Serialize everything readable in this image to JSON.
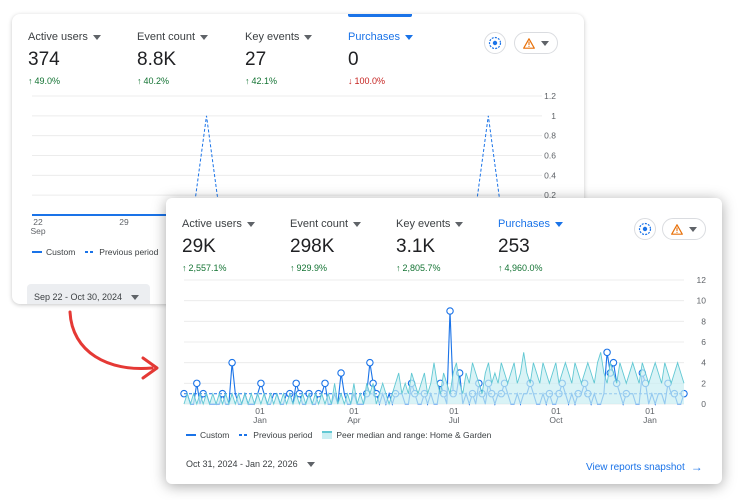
{
  "colors": {
    "accent": "#1a73e8",
    "positive": "#137333",
    "negative": "#c5221f",
    "arrow": "#e53935",
    "peer": "#62c8d3",
    "warning": "#e8710a"
  },
  "back_report": {
    "metrics": [
      {
        "label": "Active users",
        "value": "374",
        "change": "49.0%",
        "direction": "up"
      },
      {
        "label": "Event count",
        "value": "8.8K",
        "change": "40.2%",
        "direction": "up"
      },
      {
        "label": "Key events",
        "value": "27",
        "change": "42.1%",
        "direction": "up"
      },
      {
        "label": "Purchases",
        "value": "0",
        "change": "100.0%",
        "direction": "down",
        "selected": true
      }
    ],
    "legend": {
      "custom": "Custom",
      "previous": "Previous period"
    },
    "date_range": "Sep 22 - Oct 30, 2024"
  },
  "front_report": {
    "metrics": [
      {
        "label": "Active users",
        "value": "29K",
        "change": "2,557.1%",
        "direction": "up"
      },
      {
        "label": "Event count",
        "value": "298K",
        "change": "929.9%",
        "direction": "up"
      },
      {
        "label": "Key events",
        "value": "3.1K",
        "change": "2,805.7%",
        "direction": "up"
      },
      {
        "label": "Purchases",
        "value": "253",
        "change": "4,960.0%",
        "direction": "up",
        "selected": true
      }
    ],
    "legend": {
      "custom": "Custom",
      "previous": "Previous period",
      "peer": "Peer median and range: Home & Garden"
    },
    "date_range": "Oct 31, 2024 - Jan 22, 2026",
    "snapshot_link": "View reports snapshot"
  },
  "chart_data": [
    {
      "type": "line",
      "x_ticks": [
        {
          "day": "22",
          "month": "Sep"
        },
        {
          "day": "29",
          "month": ""
        }
      ],
      "yticks": [
        "1.2",
        "1",
        "0.8",
        "0.6",
        "0.4",
        "0.2"
      ],
      "ylim": [
        0,
        1.2
      ],
      "series": [
        {
          "name": "Custom",
          "style": "solid",
          "values": [
            0,
            0,
            0,
            0,
            0,
            0,
            0,
            0,
            0,
            0,
            0,
            0,
            0,
            0,
            0,
            0,
            0,
            0,
            0,
            0,
            0,
            0,
            0,
            0,
            0,
            0,
            0,
            0,
            0,
            0,
            0,
            0,
            0,
            0,
            0,
            0,
            0,
            0,
            0
          ]
        },
        {
          "name": "Previous period",
          "style": "dashed",
          "values": [
            0,
            0,
            0,
            0,
            0,
            0,
            0,
            0,
            0,
            0,
            0,
            0,
            0,
            1,
            0,
            0,
            0,
            0,
            0,
            0,
            0,
            0,
            0,
            0,
            0,
            0,
            0,
            0,
            0,
            0,
            0,
            0,
            0,
            0,
            1,
            0,
            0,
            0,
            0
          ]
        }
      ]
    },
    {
      "type": "line",
      "x_ticks": [
        {
          "day": "01",
          "month": "Jan"
        },
        {
          "day": "01",
          "month": "Apr"
        },
        {
          "day": "01",
          "month": "Jul"
        },
        {
          "day": "01",
          "month": "Oct"
        },
        {
          "day": "01",
          "month": "Jan"
        }
      ],
      "yticks": [
        "12",
        "10",
        "8",
        "6",
        "4",
        "2",
        "0"
      ],
      "ylim": [
        0,
        12
      ],
      "series": [
        {
          "name": "Custom",
          "style": "solid",
          "values": [
            1,
            1,
            0,
            0,
            2,
            0,
            1,
            1,
            0,
            0,
            0,
            0,
            1,
            0,
            0,
            4,
            1,
            0,
            0,
            1,
            0,
            0,
            0,
            1,
            2,
            1,
            0,
            0,
            1,
            1,
            0,
            0,
            1,
            1,
            0,
            2,
            1,
            0,
            0,
            1,
            0,
            0,
            1,
            1,
            2,
            0,
            0,
            1,
            0,
            3,
            1,
            0,
            0,
            1,
            0,
            0,
            0,
            1,
            4,
            2,
            1,
            0,
            1,
            0,
            1,
            0,
            1,
            1,
            1,
            0,
            0,
            2,
            1,
            0,
            0,
            1,
            0,
            1,
            0,
            0,
            2,
            1,
            0,
            9,
            1,
            1,
            3,
            0,
            1,
            0,
            1,
            0,
            2,
            1,
            0,
            2,
            1,
            0,
            1,
            1,
            2,
            1,
            0,
            0,
            1,
            0,
            1,
            1,
            2,
            1,
            0,
            0,
            1,
            0,
            1,
            0,
            0,
            1,
            2,
            1,
            0,
            1,
            0,
            1,
            1,
            2,
            1,
            0,
            1,
            0,
            0,
            1,
            5,
            3,
            4,
            2,
            1,
            0,
            1,
            1,
            1,
            0,
            0,
            3,
            2,
            0,
            1,
            0,
            1,
            1,
            0,
            2,
            1,
            1,
            0,
            0,
            1
          ]
        },
        {
          "name": "Previous period",
          "style": "dashed",
          "values": [
            1,
            1,
            1,
            1,
            1,
            1,
            1,
            1,
            1,
            1,
            1,
            1,
            1,
            1,
            1,
            1,
            1,
            1,
            1,
            1,
            1,
            1,
            1,
            1,
            1,
            1,
            1,
            1,
            1,
            1,
            1,
            1,
            1,
            1,
            1,
            1,
            1,
            1,
            1,
            1,
            1,
            1,
            1,
            1,
            1,
            1,
            1,
            1,
            1,
            1,
            1,
            1,
            1,
            1,
            1,
            1,
            1,
            1,
            1,
            1,
            1,
            1,
            1,
            1,
            1,
            1,
            1,
            1,
            1,
            1,
            1,
            1,
            1,
            1,
            1,
            1,
            1,
            1,
            1,
            1,
            1,
            1,
            1,
            1,
            1,
            1,
            1,
            1,
            1,
            1,
            1,
            1,
            1,
            1,
            1,
            1,
            1,
            1,
            1,
            1,
            1,
            1,
            1,
            1,
            1,
            1,
            1,
            1,
            1,
            1,
            1,
            1,
            1,
            1,
            1,
            1,
            1,
            1,
            1,
            1,
            1,
            1,
            1,
            1,
            1,
            1,
            1,
            1,
            1,
            1,
            1,
            1,
            1,
            1,
            1,
            1,
            1,
            1,
            1,
            1,
            1,
            1,
            1,
            1,
            1,
            1,
            1,
            1,
            1,
            1,
            1,
            1,
            1,
            1,
            1,
            1,
            1
          ]
        },
        {
          "name": "Peer median and range: Home & Garden",
          "style": "band",
          "values": [
            0,
            1,
            0,
            1,
            0,
            1,
            0,
            1,
            0,
            1,
            0,
            1,
            0,
            1,
            0,
            1,
            0,
            1,
            0,
            1,
            0,
            1,
            0,
            1,
            0,
            1,
            0,
            1,
            0,
            1,
            0,
            1,
            0,
            1,
            0,
            1,
            0,
            1,
            0,
            1,
            0,
            1,
            0,
            1,
            0,
            1,
            0,
            2,
            0,
            1,
            0,
            1,
            0,
            2,
            0,
            1,
            0,
            2,
            1,
            2,
            0,
            1,
            2,
            1,
            0,
            1,
            2,
            3,
            1,
            2,
            1,
            3,
            2,
            1,
            2,
            3,
            1,
            2,
            4,
            2,
            1,
            3,
            2,
            1,
            3,
            4,
            2,
            1,
            3,
            2,
            4,
            3,
            2,
            1,
            3,
            4,
            2,
            3,
            2,
            4,
            3,
            2,
            3,
            4,
            2,
            3,
            5,
            3,
            2,
            4,
            3,
            2,
            4,
            3,
            2,
            3,
            4,
            2,
            3,
            4,
            3,
            2,
            4,
            3,
            2,
            3,
            4,
            3,
            2,
            4,
            5,
            3,
            2,
            4,
            3,
            2,
            4,
            3,
            2,
            3,
            4,
            3,
            2,
            4,
            3,
            2,
            3,
            4,
            3,
            2,
            4,
            3,
            2,
            3,
            4,
            3,
            2
          ]
        }
      ]
    }
  ]
}
